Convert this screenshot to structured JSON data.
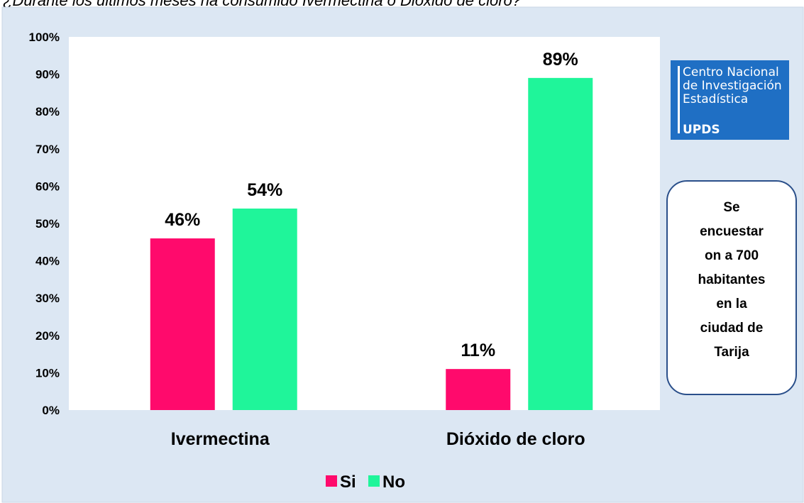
{
  "chart_data": {
    "type": "bar",
    "title": "¿Durante los últimos meses ha consumido Ivermectina o Dióxido de cloro?",
    "categories": [
      "Ivermectina",
      "Dióxido de cloro"
    ],
    "series": [
      {
        "name": "Si",
        "color": "#ff0a6c",
        "values": [
          46,
          11
        ],
        "value_labels": [
          "46%",
          "11%"
        ]
      },
      {
        "name": "No",
        "color": "#1ff59a",
        "values": [
          54,
          89
        ],
        "value_labels": [
          "54%",
          "89%"
        ]
      }
    ],
    "ylim": [
      0,
      100
    ],
    "yticks": [
      {
        "value": 0,
        "label": "0%"
      },
      {
        "value": 10,
        "label": "10%"
      },
      {
        "value": 20,
        "label": "20%"
      },
      {
        "value": 30,
        "label": "30%"
      },
      {
        "value": 40,
        "label": "40%"
      },
      {
        "value": 50,
        "label": "50%"
      },
      {
        "value": 60,
        "label": "60%"
      },
      {
        "value": 70,
        "label": "70%"
      },
      {
        "value": 80,
        "label": "80%"
      },
      {
        "value": 90,
        "label": "90%"
      },
      {
        "value": 100,
        "label": "100%"
      }
    ],
    "grid": false,
    "legend": "bottom"
  },
  "logo": {
    "lines": [
      "Centro Nacional",
      "de Investigación",
      "Estadística"
    ],
    "brand": "UPDS"
  },
  "note": {
    "lines": [
      "Se",
      "encuestar",
      "on a 700",
      "habitantes",
      "en la",
      "ciudad de",
      "Tarija"
    ]
  }
}
